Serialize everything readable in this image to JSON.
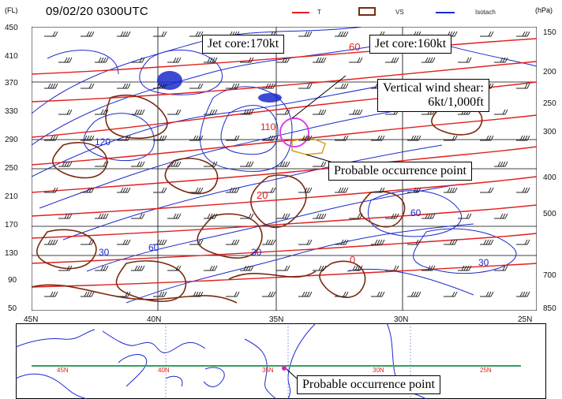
{
  "header": {
    "unit_left": "(FL)",
    "title": "09/02/20 0300UTC",
    "unit_right": "(hPa)"
  },
  "legend": [
    {
      "label": "T",
      "color": "#e02020",
      "style": "line"
    },
    {
      "label": "VS",
      "color": "#7a2a10",
      "style": "box"
    },
    {
      "label": "Isotach",
      "color": "#1a2acc",
      "style": "line"
    }
  ],
  "fl_ticks": [
    "450",
    "410",
    "370",
    "330",
    "290",
    "250",
    "210",
    "170",
    "130",
    "90",
    "50"
  ],
  "hpa_ticks": [
    "150",
    "200",
    "250",
    "300",
    "400",
    "500",
    "700",
    "850"
  ],
  "lat_ticks": [
    "45N",
    "40N",
    "35N",
    "30N",
    "25N"
  ],
  "map_lat_labels": [
    "45N",
    "40N",
    "35N",
    "30N",
    "25N"
  ],
  "contour_labels": {
    "temp": [
      "60",
      "20",
      "0"
    ],
    "speed": [
      "110",
      "120",
      "60",
      "30",
      "60",
      "30",
      "30"
    ]
  },
  "callouts": {
    "jet_core_1": "Jet core:170kt",
    "jet_core_2": "Jet core:160kt",
    "vws_line1": "Vertical wind shear:",
    "vws_line2": "6kt/1,000ft",
    "probable_cross": "Probable occurrence point",
    "probable_map": "Probable occurrence point"
  },
  "colors": {
    "temperature": "#e02020",
    "vertical_shear": "#7a2a10",
    "isotach": "#1a2acc",
    "highlight_circle": "#e040e0",
    "turbulence_area": "#d8a020",
    "section_line": "#30a060",
    "map_marker": "#e020c0"
  }
}
